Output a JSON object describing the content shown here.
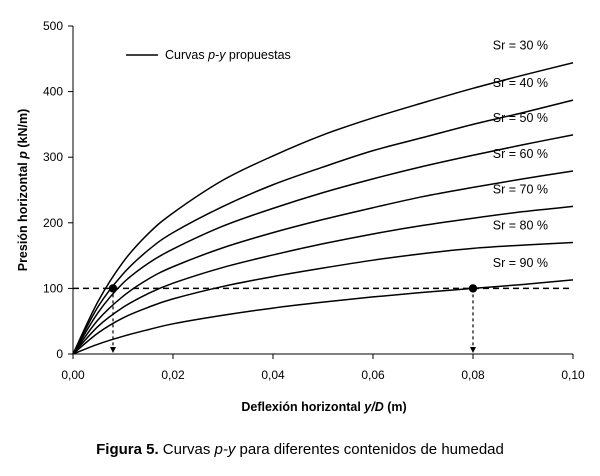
{
  "chart_data": {
    "type": "line",
    "xlabel_prefix": "Deflexión horizontal ",
    "xlabel_italic": "y/D",
    "xlabel_suffix": " (m)",
    "ylabel_prefix": "Presión horizontal ",
    "ylabel_italic": "p",
    "ylabel_suffix": " (kN/m)",
    "xlim": [
      0,
      0.1
    ],
    "ylim": [
      0,
      500
    ],
    "x_ticks": [
      "0,00",
      "0,02",
      "0,04",
      "0,06",
      "0,08",
      "0,10"
    ],
    "y_ticks": [
      "0",
      "100",
      "200",
      "300",
      "400",
      "500"
    ],
    "grid": false,
    "legend": {
      "placement": "top-left",
      "prefix": "Curvas ",
      "italic": "p-y",
      "suffix": " propuestas"
    },
    "series": [
      {
        "name": "Sr = 30 %",
        "x": [
          0,
          0.005,
          0.01,
          0.015,
          0.02,
          0.03,
          0.04,
          0.05,
          0.06,
          0.07,
          0.08,
          0.09,
          0.1
        ],
        "values": [
          0,
          80,
          140,
          183,
          215,
          265,
          302,
          334,
          360,
          383,
          405,
          425,
          444
        ]
      },
      {
        "name": "Sr = 40 %",
        "x": [
          0,
          0.005,
          0.01,
          0.015,
          0.02,
          0.03,
          0.04,
          0.05,
          0.06,
          0.07,
          0.08,
          0.09,
          0.1
        ],
        "values": [
          0,
          72,
          122,
          158,
          185,
          225,
          258,
          285,
          310,
          330,
          350,
          368,
          387
        ]
      },
      {
        "name": "Sr = 50 %",
        "x": [
          0,
          0.005,
          0.01,
          0.015,
          0.02,
          0.03,
          0.04,
          0.05,
          0.06,
          0.07,
          0.08,
          0.09,
          0.1
        ],
        "values": [
          0,
          63,
          108,
          138,
          160,
          195,
          222,
          246,
          267,
          286,
          303,
          319,
          334
        ]
      },
      {
        "name": "Sr = 60 %",
        "x": [
          0,
          0.005,
          0.01,
          0.015,
          0.02,
          0.03,
          0.04,
          0.05,
          0.06,
          0.07,
          0.08,
          0.09,
          0.1
        ],
        "values": [
          0,
          52,
          88,
          114,
          133,
          162,
          185,
          205,
          223,
          240,
          254,
          267,
          279
        ]
      },
      {
        "name": "Sr = 70 %",
        "x": [
          0,
          0.005,
          0.01,
          0.015,
          0.02,
          0.03,
          0.04,
          0.05,
          0.06,
          0.07,
          0.08,
          0.09,
          0.1
        ],
        "values": [
          0,
          42,
          71,
          92,
          108,
          132,
          151,
          168,
          183,
          196,
          207,
          217,
          225
        ]
      },
      {
        "name": "Sr = 80 %",
        "x": [
          0,
          0.005,
          0.01,
          0.015,
          0.02,
          0.03,
          0.04,
          0.05,
          0.06,
          0.07,
          0.08,
          0.09,
          0.1
        ],
        "values": [
          0,
          32,
          55,
          71,
          84,
          103,
          118,
          131,
          143,
          153,
          161,
          166,
          170
        ]
      },
      {
        "name": "Sr = 90 %",
        "x": [
          0,
          0.005,
          0.01,
          0.015,
          0.02,
          0.03,
          0.04,
          0.05,
          0.06,
          0.07,
          0.08,
          0.09,
          0.1
        ],
        "values": [
          0,
          15,
          27,
          37,
          46,
          59,
          70,
          79,
          87,
          94,
          100,
          106,
          113
        ]
      }
    ],
    "reference_line_y": 100,
    "markers": [
      {
        "x": 0.008,
        "y": 100
      },
      {
        "x": 0.08,
        "y": 100
      }
    ]
  },
  "caption": {
    "label": "Figura 5.",
    "text_before": " Curvas ",
    "italic": "p-y",
    "text_after": " para diferentes contenidos de humedad"
  }
}
